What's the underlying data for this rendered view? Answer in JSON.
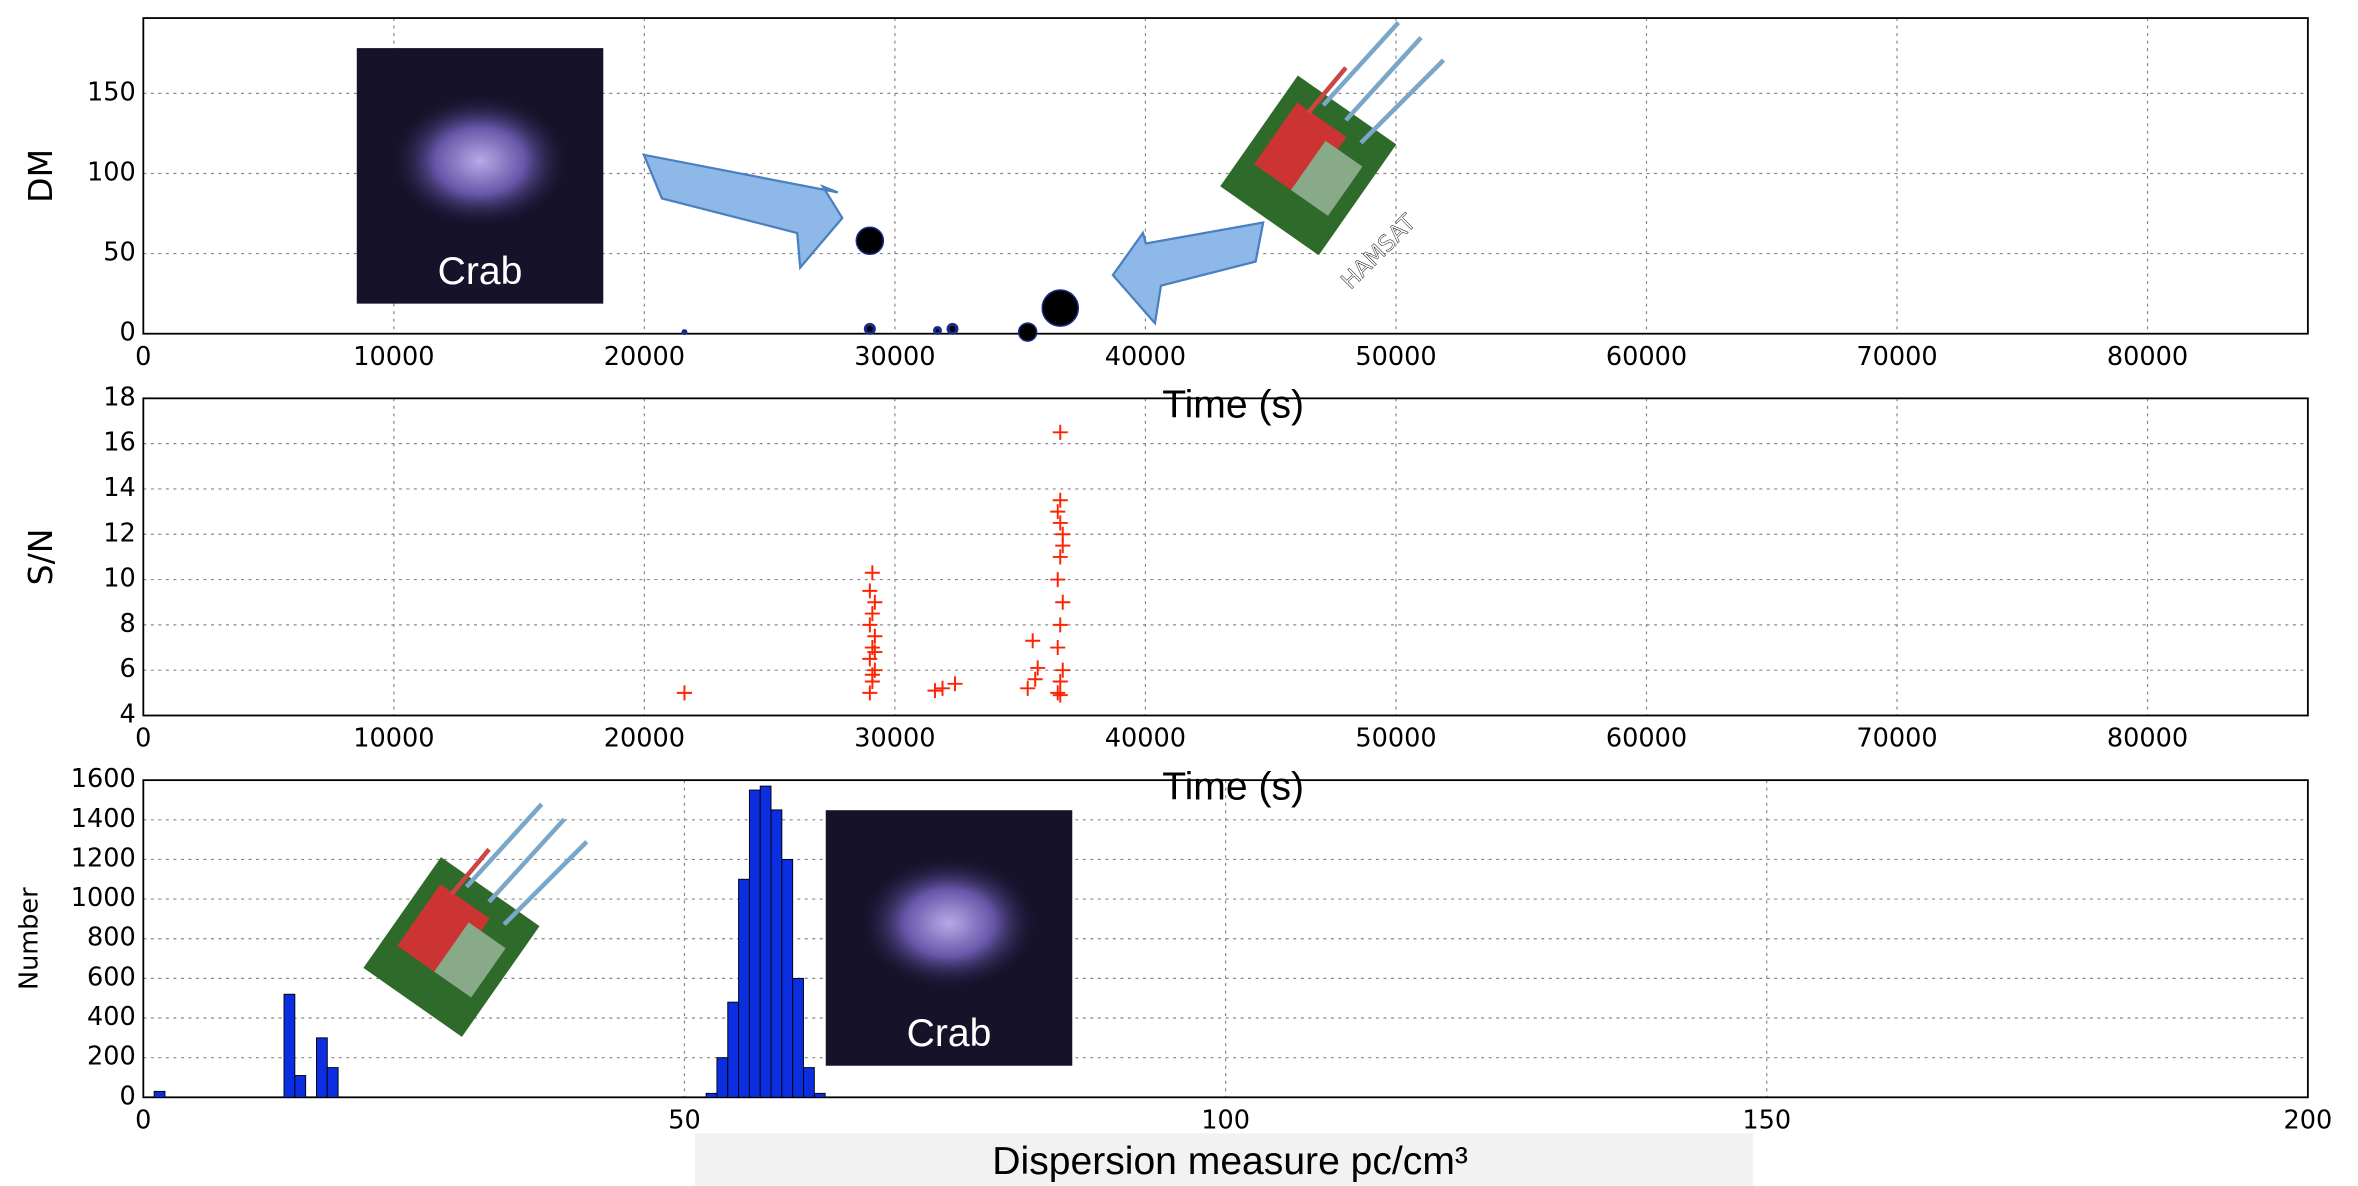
{
  "chart_data": [
    {
      "type": "scatter",
      "xlabel": "Time (s)",
      "ylabel": "DM",
      "xlim": [
        0,
        86400
      ],
      "ylim": [
        0,
        197
      ],
      "xticks": [
        0,
        10000,
        20000,
        30000,
        40000,
        50000,
        60000,
        70000,
        80000
      ],
      "yticks": [
        0,
        50,
        100,
        150
      ],
      "grid": true,
      "color": "#000000",
      "x": [
        29000,
        36600,
        35300,
        29000,
        32300,
        31700,
        21600
      ],
      "y": [
        58,
        16,
        1,
        3,
        3,
        2,
        1
      ],
      "sizes": [
        9,
        12,
        6,
        3,
        3,
        2,
        1
      ],
      "annotations": [
        "Crab",
        "HAMSAT"
      ]
    },
    {
      "type": "scatter",
      "marker": "+",
      "xlabel": "Time (s)",
      "ylabel": "S/N",
      "xlim": [
        0,
        86400
      ],
      "ylim": [
        4,
        18
      ],
      "xticks": [
        0,
        10000,
        20000,
        30000,
        40000,
        50000,
        60000,
        70000,
        80000
      ],
      "yticks": [
        4,
        6,
        8,
        10,
        12,
        14,
        16,
        18
      ],
      "grid": true,
      "color": "#ff2200",
      "x": [
        21600,
        29000,
        29100,
        29200,
        29000,
        29100,
        29200,
        29000,
        29100,
        29200,
        29000,
        29100,
        29200,
        29100,
        31600,
        31900,
        32400,
        35300,
        35500,
        35600,
        35700,
        36500,
        36600,
        36700,
        36500,
        36600,
        36700,
        36500,
        36600,
        36700,
        36600,
        36500,
        36600,
        36700,
        36600,
        36600
      ],
      "y": [
        5.0,
        5.0,
        5.5,
        6.0,
        6.5,
        7.0,
        7.5,
        8.0,
        8.5,
        9.0,
        9.5,
        5.8,
        6.8,
        10.3,
        5.1,
        5.2,
        5.4,
        5.2,
        7.3,
        5.6,
        6.1,
        5.0,
        5.5,
        6.0,
        7.0,
        8.0,
        9.0,
        10.0,
        11.0,
        12.0,
        12.5,
        13.0,
        13.5,
        11.5,
        16.5,
        4.9
      ]
    },
    {
      "type": "histogram",
      "xlabel": "Dispersion measure pc/cm³",
      "ylabel": "Number",
      "xlim": [
        0,
        200
      ],
      "ylim": [
        0,
        1600
      ],
      "xticks": [
        0,
        50,
        100,
        150,
        200
      ],
      "yticks": [
        0,
        200,
        400,
        600,
        800,
        1000,
        1200,
        1400,
        1600
      ],
      "grid": true,
      "color": "#0a2ee0",
      "bins": [
        0,
        1,
        2,
        13,
        14,
        15,
        16,
        17,
        18,
        52,
        53,
        54,
        55,
        56,
        57,
        58,
        59,
        60,
        61,
        62,
        63
      ],
      "counts": [
        0,
        30,
        0,
        520,
        110,
        0,
        300,
        150,
        0,
        20,
        200,
        480,
        1100,
        1550,
        1570,
        1450,
        1200,
        600,
        150,
        20
      ],
      "annotations": [
        "Crab"
      ]
    }
  ]
}
